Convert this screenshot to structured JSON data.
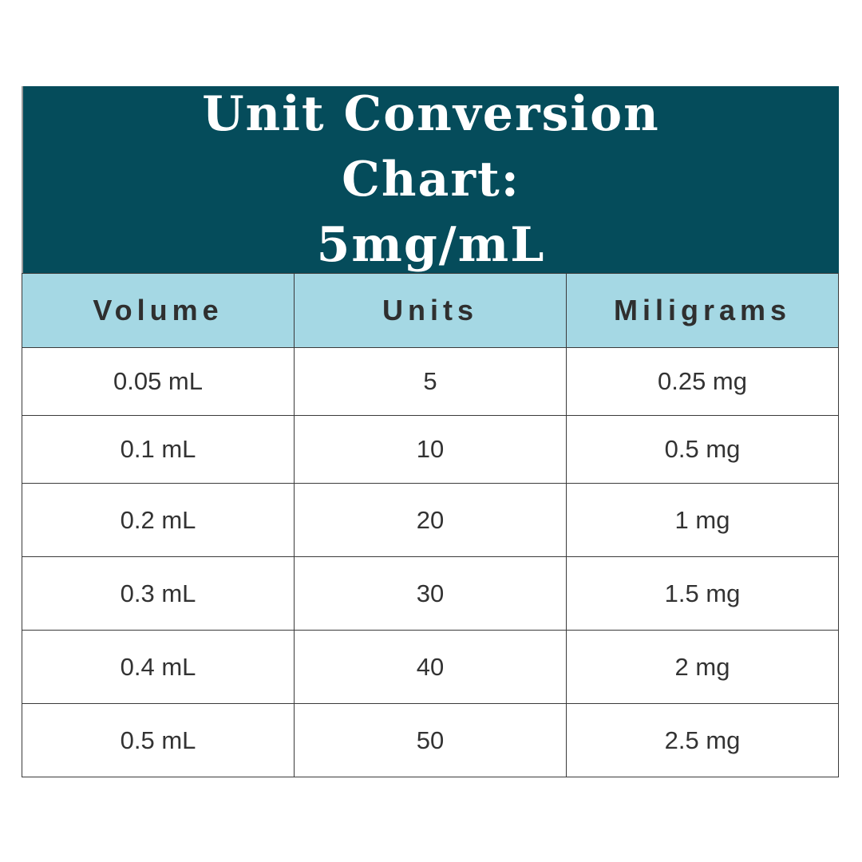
{
  "title": {
    "line1": "Unit Conversion Chart:",
    "line2": "5mg/mL"
  },
  "colors": {
    "title_bg": "#054c5b",
    "header_bg": "#a5d8e4",
    "text": "#333333"
  },
  "table": {
    "headers": [
      "Volume",
      "Units",
      "Miligrams"
    ],
    "rows": [
      [
        "0.05 mL",
        "5",
        "0.25 mg"
      ],
      [
        "0.1 mL",
        "10",
        "0.5 mg"
      ],
      [
        "0.2 mL",
        "20",
        "1 mg"
      ],
      [
        "0.3 mL",
        "30",
        "1.5 mg"
      ],
      [
        "0.4 mL",
        "40",
        "2 mg"
      ],
      [
        "0.5 mL",
        "50",
        "2.5 mg"
      ]
    ]
  }
}
